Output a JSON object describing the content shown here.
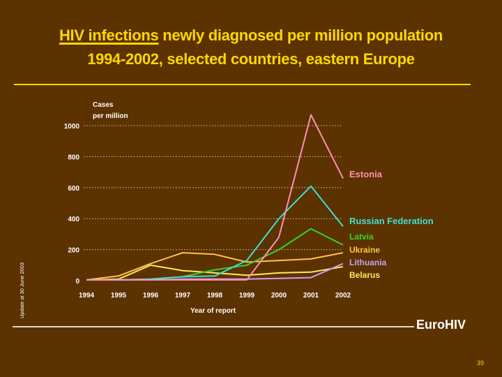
{
  "slide": {
    "title_highlight": "HIV infections",
    "title_line1_rest": " newly diagnosed per million population",
    "title_line2": "1994-2002, selected countries, eastern Europe",
    "side_note": "Update at 30 June 2003",
    "brand": "EuroHIV",
    "page_number": "39"
  },
  "colors": {
    "background": "#5c3200",
    "title": "#ffd700",
    "axis_text": "#ffffff",
    "grid": "#d8c7a0"
  },
  "chart_data": {
    "type": "line",
    "title": "",
    "ylabel_line1": "Cases",
    "ylabel_line2": "per million",
    "xlabel": "Year of report",
    "ylim": [
      0,
      1000
    ],
    "yticks": [
      0,
      200,
      400,
      600,
      800,
      1000
    ],
    "ytick_labels": [
      "0",
      "200",
      "400",
      "600",
      "800",
      "1000"
    ],
    "categories": [
      "1994",
      "1995",
      "1996",
      "1997",
      "1998",
      "1999",
      "2000",
      "2001",
      "2002"
    ],
    "grid": "horizontal-dotted",
    "series": [
      {
        "name": "Estonia",
        "color": "#ff8fb4",
        "values": [
          5,
          5,
          5,
          5,
          5,
          5,
          280,
          1070,
          660
        ]
      },
      {
        "name": "Russian Federation",
        "color": "#3ee0d2",
        "values": [
          5,
          5,
          10,
          25,
          30,
          130,
          400,
          610,
          350
        ]
      },
      {
        "name": "Latvia",
        "color": "#39d02e",
        "values": [
          5,
          5,
          10,
          25,
          70,
          100,
          200,
          335,
          230
        ]
      },
      {
        "name": "Ukraine",
        "color": "#ffc34d",
        "values": [
          5,
          30,
          110,
          180,
          170,
          120,
          130,
          140,
          180
        ]
      },
      {
        "name": "Lithuania",
        "color": "#c8a0f0",
        "values": [
          5,
          5,
          5,
          10,
          10,
          10,
          15,
          20,
          110
        ]
      },
      {
        "name": "Belarus",
        "color": "#ffe85c",
        "values": [
          5,
          10,
          100,
          65,
          50,
          35,
          50,
          55,
          90
        ]
      }
    ]
  }
}
